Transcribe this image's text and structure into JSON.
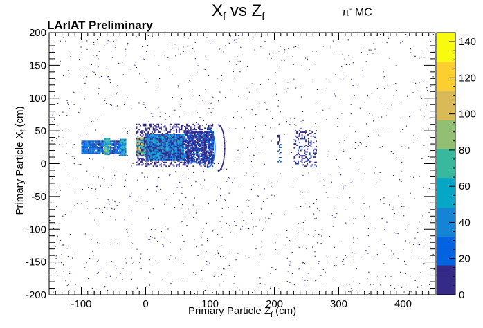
{
  "chart_data": {
    "type": "heatmap",
    "title": {
      "pre": "X",
      "pre_sub": "f",
      "mid": " vs Z",
      "mid_sub": "f"
    },
    "tag": {
      "particle": "π",
      "sign": "-",
      "suffix": " MC"
    },
    "annotation": "LArIAT Preliminary",
    "xlabel": {
      "pre": "Primary Particle Z",
      "sub": "f",
      "post": " (cm)"
    },
    "ylabel": {
      "pre": "Primary Particle X",
      "sub": "f",
      "post": " (cm)"
    },
    "xlim": [
      -150,
      450
    ],
    "ylim": [
      -200,
      200
    ],
    "x_ticks": [
      -100,
      0,
      100,
      200,
      300,
      400
    ],
    "y_ticks": [
      -200,
      -150,
      -100,
      -50,
      0,
      50,
      100,
      150,
      200
    ],
    "z_ticks": [
      0,
      20,
      40,
      60,
      80,
      100,
      120,
      140
    ],
    "zlim": [
      0,
      145
    ],
    "palette": [
      "#352a87",
      "#0363e1",
      "#1485d4",
      "#06a7c6",
      "#38b99e",
      "#92bf73",
      "#d9ba56",
      "#fcce2e",
      "#f9fb0e"
    ],
    "regions": [
      {
        "x": [
          -100,
          -65
        ],
        "y": [
          15,
          35
        ],
        "density": 0.95,
        "level": 0.18
      },
      {
        "x": [
          -65,
          -55
        ],
        "y": [
          13,
          38
        ],
        "density": 1.0,
        "level": 0.45
      },
      {
        "x": [
          -55,
          -40
        ],
        "y": [
          15,
          35
        ],
        "density": 0.85,
        "level": 0.15
      },
      {
        "x": [
          -40,
          -30
        ],
        "y": [
          12,
          38
        ],
        "density": 1.0,
        "level": 0.35
      },
      {
        "x": [
          -15,
          0
        ],
        "y": [
          12,
          40
        ],
        "density": 1.0,
        "level": 0.55
      },
      {
        "x": [
          0,
          60
        ],
        "y": [
          5,
          45
        ],
        "density": 1.0,
        "level": 0.28
      },
      {
        "x": [
          60,
          105
        ],
        "y": [
          0,
          50
        ],
        "density": 0.8,
        "level": 0.12
      },
      {
        "x": [
          -15,
          105
        ],
        "y": [
          -5,
          60
        ],
        "density": 0.35,
        "level": 0.06
      },
      {
        "x": [
          205,
          210
        ],
        "y": [
          0,
          45
        ],
        "density": 0.4,
        "level": 0.1
      },
      {
        "x": [
          230,
          265
        ],
        "y": [
          -5,
          50
        ],
        "density": 0.25,
        "level": 0.08
      }
    ],
    "arcs": [
      {
        "cx": 95,
        "cy": 25,
        "r_x": 12,
        "r_y": 30,
        "level": 0.15
      },
      {
        "cx": 112,
        "cy": 25,
        "r_x": 10,
        "r_y": 35,
        "level": 0.08
      }
    ],
    "sparse_points": 1400
  }
}
